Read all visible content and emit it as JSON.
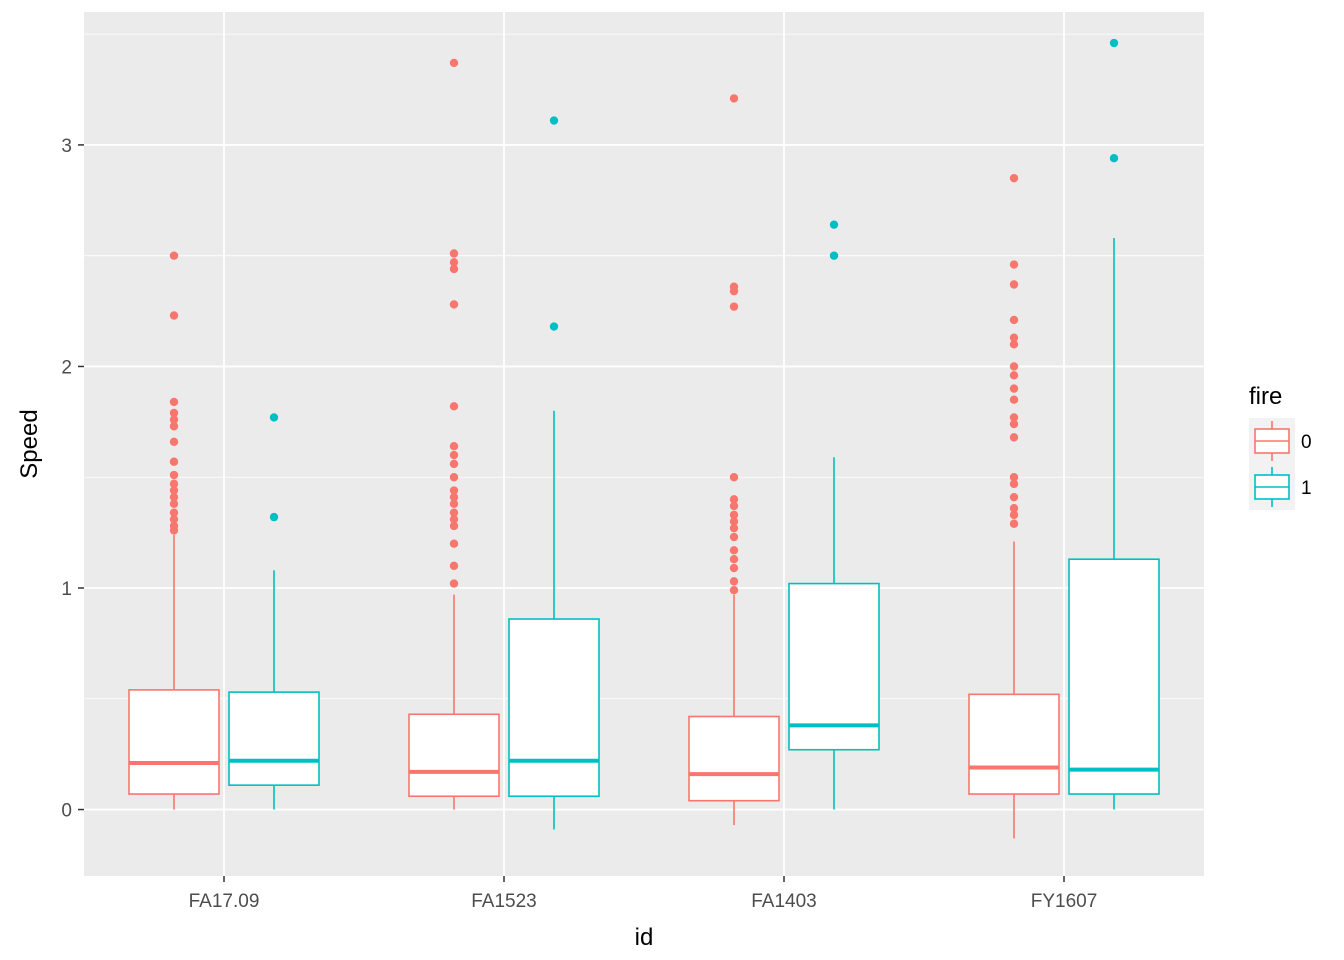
{
  "chart_data": {
    "type": "boxplot",
    "title": "",
    "xlabel": "id",
    "ylabel": "Speed",
    "ylim": [
      -0.3,
      3.6
    ],
    "yticks": [
      0,
      1,
      2,
      3
    ],
    "categories": [
      "FA17.09",
      "FA1523",
      "FA1403",
      "FY1607"
    ],
    "legend": {
      "title": "fire",
      "position": "right",
      "entries": [
        {
          "label": "0",
          "color": "#F8766D"
        },
        {
          "label": "1",
          "color": "#00BFC4"
        }
      ]
    },
    "series": [
      {
        "name": "0",
        "color": "#F8766D",
        "boxes": [
          {
            "category": "FA17.09",
            "lower_whisker": 0.0,
            "q1": 0.07,
            "median": 0.21,
            "q3": 0.54,
            "upper_whisker": 1.24,
            "outliers": [
              1.26,
              1.28,
              1.31,
              1.34,
              1.38,
              1.41,
              1.44,
              1.47,
              1.51,
              1.57,
              1.66,
              1.73,
              1.76,
              1.79,
              1.84,
              2.23,
              2.5
            ]
          },
          {
            "category": "FA1523",
            "lower_whisker": 0.0,
            "q1": 0.06,
            "median": 0.17,
            "q3": 0.43,
            "upper_whisker": 0.97,
            "outliers": [
              1.02,
              1.1,
              1.2,
              1.28,
              1.31,
              1.34,
              1.38,
              1.41,
              1.44,
              1.5,
              1.56,
              1.6,
              1.64,
              1.82,
              2.28,
              2.44,
              2.47,
              2.51,
              3.37
            ]
          },
          {
            "category": "FA1403",
            "lower_whisker": -0.07,
            "q1": 0.04,
            "median": 0.16,
            "q3": 0.42,
            "upper_whisker": 0.97,
            "outliers": [
              0.99,
              1.03,
              1.09,
              1.13,
              1.17,
              1.23,
              1.27,
              1.3,
              1.33,
              1.37,
              1.4,
              1.5,
              2.27,
              2.34,
              2.36,
              3.21
            ]
          },
          {
            "category": "FY1607",
            "lower_whisker": -0.13,
            "q1": 0.07,
            "median": 0.19,
            "q3": 0.52,
            "upper_whisker": 1.21,
            "outliers": [
              1.29,
              1.33,
              1.36,
              1.41,
              1.47,
              1.5,
              1.68,
              1.74,
              1.77,
              1.85,
              1.9,
              1.96,
              2.0,
              2.1,
              2.13,
              2.21,
              2.37,
              2.46,
              2.85
            ]
          }
        ]
      },
      {
        "name": "1",
        "color": "#00BFC4",
        "boxes": [
          {
            "category": "FA17.09",
            "lower_whisker": 0.0,
            "q1": 0.11,
            "median": 0.22,
            "q3": 0.53,
            "upper_whisker": 1.08,
            "outliers": [
              1.32,
              1.77
            ]
          },
          {
            "category": "FA1523",
            "lower_whisker": -0.09,
            "q1": 0.06,
            "median": 0.22,
            "q3": 0.86,
            "upper_whisker": 1.8,
            "outliers": [
              2.18,
              3.11
            ]
          },
          {
            "category": "FA1403",
            "lower_whisker": 0.0,
            "q1": 0.27,
            "median": 0.38,
            "q3": 1.02,
            "upper_whisker": 1.59,
            "outliers": [
              2.5,
              2.64
            ]
          },
          {
            "category": "FY1607",
            "lower_whisker": 0.0,
            "q1": 0.07,
            "median": 0.18,
            "q3": 1.13,
            "upper_whisker": 2.58,
            "outliers": [
              2.94,
              3.46
            ]
          }
        ]
      }
    ]
  }
}
